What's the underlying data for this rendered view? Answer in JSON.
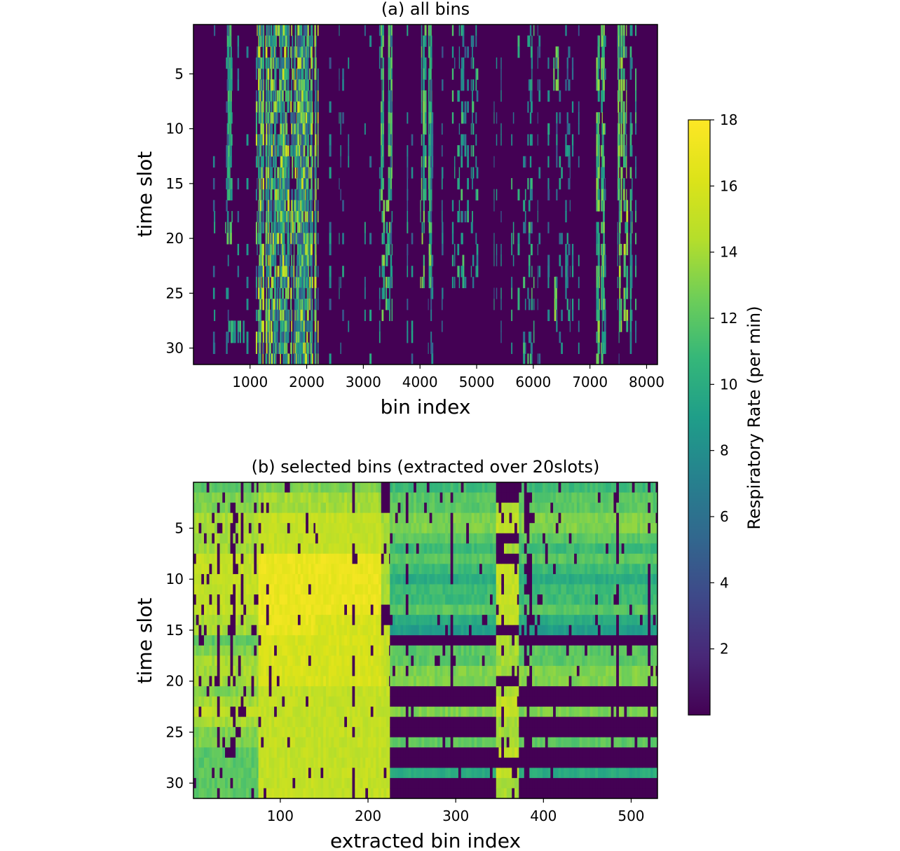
{
  "chart_data": [
    {
      "type": "heatmap",
      "title": "(a) all bins",
      "xlabel": "bin index",
      "ylabel": "time slot",
      "xlim": [
        1,
        8192
      ],
      "ylim": [
        31,
        1
      ],
      "xticks": [
        1000,
        2000,
        3000,
        4000,
        5000,
        6000,
        7000,
        8000
      ],
      "yticks": [
        5,
        10,
        15,
        20,
        25,
        30
      ],
      "colormap": "viridis",
      "vmin": 0,
      "vmax": 18,
      "background_value": 0,
      "column_profiles": [
        {
          "x_range": [
            1100,
            2200
          ],
          "column_count": 110,
          "slots": [
            1,
            31
          ],
          "values": [
            4,
            16
          ],
          "density": 0.55
        },
        {
          "x_range": [
            560,
            680
          ],
          "column_count": 10,
          "slots": [
            1,
            16
          ],
          "values": [
            8,
            12
          ],
          "density": 0.6
        },
        {
          "x_range": [
            560,
            680
          ],
          "column_count": 10,
          "slots": [
            18,
            20
          ],
          "values": [
            10,
            13
          ],
          "density": 0.5
        },
        {
          "x_range": [
            560,
            900
          ],
          "column_count": 20,
          "slots": [
            28,
            29
          ],
          "values": [
            8,
            12
          ],
          "density": 0.5
        },
        {
          "x_range": [
            3300,
            3500
          ],
          "column_count": 8,
          "slots": [
            1,
            16
          ],
          "values": [
            8,
            13
          ],
          "density": 0.8
        },
        {
          "x_range": [
            3300,
            3500
          ],
          "column_count": 8,
          "slots": [
            17,
            27
          ],
          "values": [
            8,
            14
          ],
          "density": 0.5
        },
        {
          "x_range": [
            4000,
            4200
          ],
          "column_count": 8,
          "slots": [
            1,
            16
          ],
          "values": [
            8,
            13
          ],
          "density": 0.8
        },
        {
          "x_range": [
            4000,
            4200
          ],
          "column_count": 8,
          "slots": [
            17,
            24
          ],
          "values": [
            8,
            14
          ],
          "density": 0.6
        },
        {
          "x_range": [
            4500,
            5000
          ],
          "column_count": 12,
          "slots": [
            1,
            24
          ],
          "values": [
            6,
            12
          ],
          "density": 0.35
        },
        {
          "x_range": [
            5600,
            6300
          ],
          "column_count": 10,
          "slots": [
            1,
            31
          ],
          "values": [
            6,
            12
          ],
          "density": 0.25
        },
        {
          "x_range": [
            6350,
            6450
          ],
          "column_count": 3,
          "slots": [
            3,
            6
          ],
          "values": [
            10,
            14
          ],
          "density": 0.9
        },
        {
          "x_range": [
            6350,
            6450
          ],
          "column_count": 3,
          "slots": [
            24,
            27
          ],
          "values": [
            10,
            14
          ],
          "density": 0.9
        },
        {
          "x_range": [
            7100,
            7250
          ],
          "column_count": 8,
          "slots": [
            1,
            31
          ],
          "values": [
            8,
            14
          ],
          "density": 0.7
        },
        {
          "x_range": [
            7450,
            7650
          ],
          "column_count": 8,
          "slots": [
            1,
            16
          ],
          "values": [
            10,
            14
          ],
          "density": 0.75
        },
        {
          "x_range": [
            7450,
            7650
          ],
          "column_count": 8,
          "slots": [
            17,
            28
          ],
          "values": [
            10,
            15
          ],
          "density": 0.6
        },
        {
          "x_range": [
            7700,
            7800
          ],
          "column_count": 3,
          "slots": [
            1,
            30
          ],
          "values": [
            6,
            12
          ],
          "density": 0.5
        },
        {
          "x_range": [
            300,
            7900
          ],
          "column_count": 60,
          "slots": [
            1,
            31
          ],
          "values": [
            4,
            10
          ],
          "density": 0.25
        }
      ]
    },
    {
      "type": "heatmap",
      "title": "(b) selected bins (extracted over 20slots)",
      "xlabel": "extracted bin index",
      "ylabel": "time slot",
      "xlim": [
        1,
        530
      ],
      "ylim": [
        31,
        1
      ],
      "xticks": [
        100,
        200,
        300,
        400,
        500
      ],
      "yticks": [
        5,
        10,
        15,
        20,
        25,
        30
      ],
      "colormap": "viridis",
      "vmin": 0,
      "vmax": 18,
      "column_groups": [
        {
          "x_range": [
            1,
            75
          ],
          "level": 13.5,
          "slot_profile": [
            12,
            13,
            13,
            14,
            14,
            14,
            14,
            15,
            15,
            15,
            15,
            15,
            15,
            14,
            14,
            12,
            13,
            14,
            14,
            14,
            13,
            14,
            15,
            14,
            13,
            13,
            12,
            12,
            12,
            12,
            12
          ],
          "dropout": 0.35
        },
        {
          "x_range": [
            75,
            140
          ],
          "level": 16.5,
          "slot_profile": [
            13,
            14,
            14,
            15,
            15,
            15,
            15,
            17,
            17,
            17,
            17,
            17,
            17,
            17,
            17,
            16,
            16,
            16,
            16,
            16,
            15,
            15,
            15,
            15,
            15,
            15,
            15,
            15,
            15,
            15,
            15
          ],
          "dropout": 0.12
        },
        {
          "x_range": [
            140,
            215
          ],
          "level": 16.5,
          "slot_profile": [
            13,
            14,
            14,
            15,
            15,
            15,
            15,
            17,
            17,
            17,
            17,
            17,
            17,
            16,
            16,
            16,
            16,
            16,
            16,
            16,
            15,
            15,
            15,
            15,
            15,
            15,
            15,
            15,
            15,
            15,
            15
          ],
          "dropout": 0.1
        },
        {
          "x_range": [
            215,
            225
          ],
          "level": 15,
          "slot_profile": [
            0,
            0,
            0,
            14,
            14,
            14,
            14,
            14,
            14,
            14,
            14,
            14,
            0,
            0,
            15,
            15,
            15,
            15,
            15,
            15,
            15,
            15,
            15,
            15,
            15,
            15,
            15,
            15,
            15,
            15,
            15
          ],
          "dropout": 0.2
        },
        {
          "x_range": [
            225,
            346
          ],
          "level": 11,
          "slot_profile": [
            11,
            12,
            12,
            13,
            13,
            12,
            11,
            12,
            11,
            10,
            11,
            11,
            12,
            10,
            9,
            0,
            12,
            12,
            13,
            13,
            0,
            0,
            13,
            0,
            0,
            12,
            0,
            0,
            10,
            0,
            0
          ],
          "dropout": 0.15
        },
        {
          "x_range": [
            346,
            372
          ],
          "level": 13,
          "slot_profile": [
            0,
            0,
            14,
            15,
            15,
            0,
            14,
            0,
            15,
            15,
            15,
            15,
            15,
            15,
            0,
            14,
            14,
            14,
            14,
            0,
            14,
            15,
            15,
            14,
            14,
            14,
            15,
            0,
            15,
            14,
            14
          ],
          "dropout": 0.3
        },
        {
          "x_range": [
            372,
            530
          ],
          "level": 11,
          "slot_profile": [
            11,
            12,
            12,
            13,
            13,
            12,
            11,
            12,
            11,
            10,
            11,
            11,
            12,
            10,
            9,
            0,
            12,
            12,
            13,
            13,
            0,
            0,
            13,
            0,
            0,
            12,
            0,
            0,
            10,
            0,
            0
          ],
          "dropout": 0.15
        }
      ]
    }
  ],
  "colorbar": {
    "label": "Respiratory Rate (per min)",
    "ticks": [
      2,
      4,
      6,
      8,
      10,
      12,
      14,
      16,
      18
    ],
    "vmin": 0,
    "vmax": 18
  }
}
